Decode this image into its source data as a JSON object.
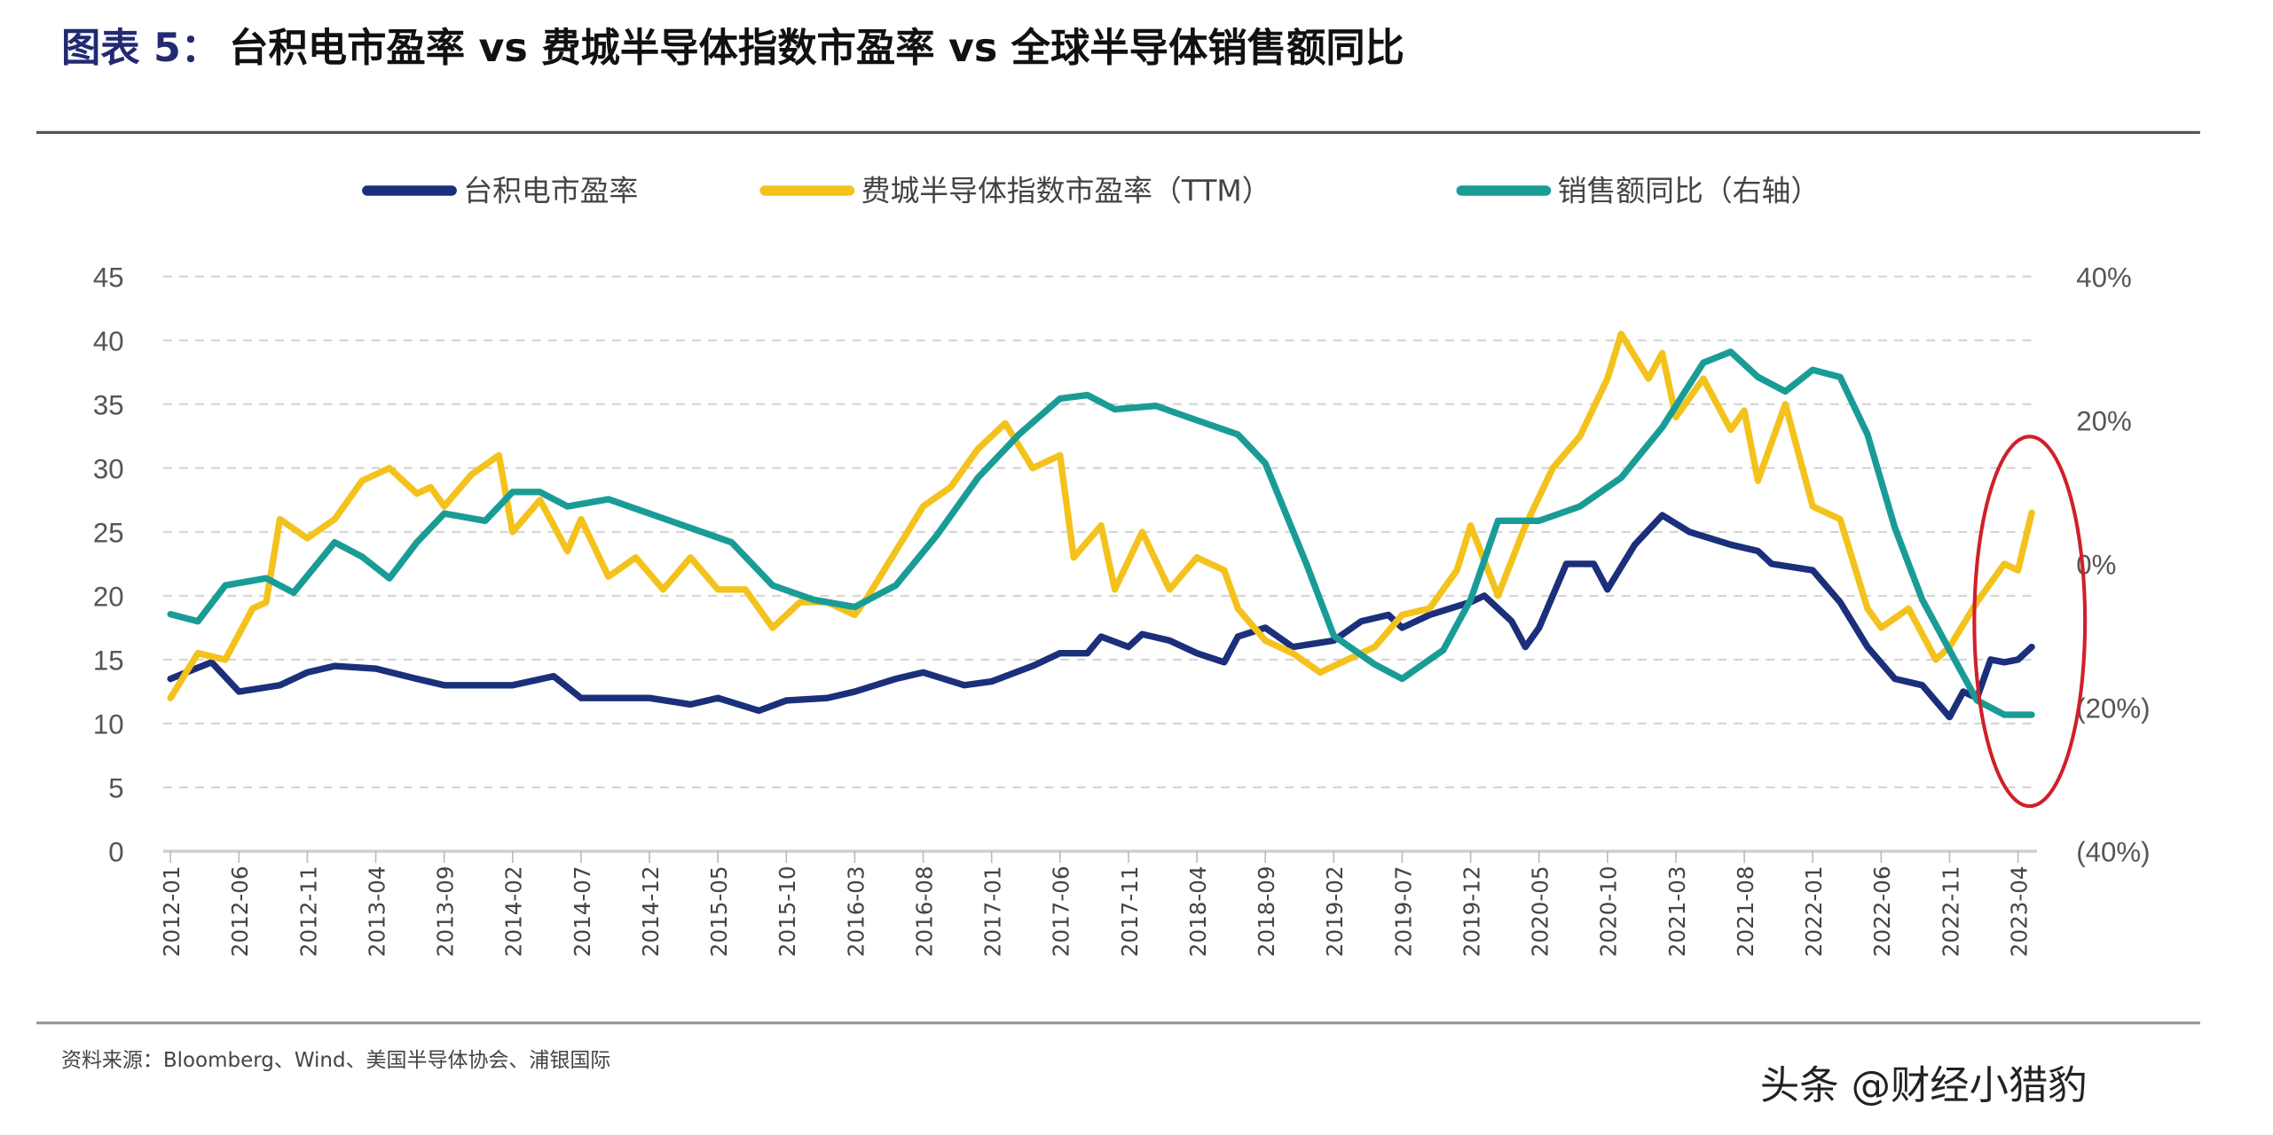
{
  "title": {
    "lead": "图表 5：",
    "main": "台积电市盈率 vs 费城半导体指数市盈率 vs 全球半导体销售额同比"
  },
  "source": "资料来源：Bloomberg、Wind、美国半导体协会、浦银国际",
  "watermark": "头条 @财经小猎豹",
  "colors": {
    "tsmc": "#1b2f7a",
    "sox": "#f4c21c",
    "sales": "#1a9c96",
    "highlight": "#d0202a",
    "title_lead": "#232a72"
  },
  "chart_data": {
    "type": "line",
    "title": "台积电市盈率 vs 费城半导体指数市盈率 vs 全球半导体销售额同比",
    "legend_position": "top",
    "grid": true,
    "x_range": [
      "2012-01",
      "2023-05"
    ],
    "x_ticks": [
      "2012-01",
      "2012-06",
      "2012-11",
      "2013-04",
      "2013-09",
      "2014-02",
      "2014-07",
      "2014-12",
      "2015-05",
      "2015-10",
      "2016-03",
      "2016-08",
      "2017-01",
      "2017-06",
      "2017-11",
      "2018-04",
      "2018-09",
      "2019-02",
      "2019-07",
      "2019-12",
      "2020-05",
      "2020-10",
      "2021-03",
      "2021-08",
      "2022-01",
      "2022-06",
      "2022-11",
      "2023-04"
    ],
    "y_left": {
      "ylim": [
        0,
        45
      ],
      "ticks": [
        "0",
        "5",
        "10",
        "15",
        "20",
        "25",
        "30",
        "35",
        "40",
        "45"
      ]
    },
    "y_right": {
      "ylim": [
        -40,
        40
      ],
      "ticks": [
        "(40%)",
        "(20%)",
        "0%",
        "20%",
        "40%"
      ],
      "tick_values": [
        -40,
        -20,
        0,
        20,
        40
      ]
    },
    "series": [
      {
        "name": "台积电市盈率",
        "axis": "left",
        "color": "#1b2f7a",
        "points": [
          [
            "2012-01",
            13.5
          ],
          [
            "2012-04",
            14.8
          ],
          [
            "2012-06",
            12.5
          ],
          [
            "2012-09",
            13
          ],
          [
            "2012-11",
            14
          ],
          [
            "2013-01",
            14.5
          ],
          [
            "2013-04",
            14.3
          ],
          [
            "2013-07",
            13.5
          ],
          [
            "2013-09",
            13
          ],
          [
            "2013-12",
            13
          ],
          [
            "2014-02",
            13
          ],
          [
            "2014-05",
            13.7
          ],
          [
            "2014-07",
            12
          ],
          [
            "2014-10",
            12
          ],
          [
            "2014-12",
            12
          ],
          [
            "2015-03",
            11.5
          ],
          [
            "2015-05",
            12
          ],
          [
            "2015-08",
            11
          ],
          [
            "2015-10",
            11.8
          ],
          [
            "2016-01",
            12
          ],
          [
            "2016-03",
            12.5
          ],
          [
            "2016-06",
            13.5
          ],
          [
            "2016-08",
            14
          ],
          [
            "2016-11",
            13
          ],
          [
            "2017-01",
            13.3
          ],
          [
            "2017-04",
            14.5
          ],
          [
            "2017-06",
            15.5
          ],
          [
            "2017-08",
            15.5
          ],
          [
            "2017-09",
            16.8
          ],
          [
            "2017-11",
            16
          ],
          [
            "2017-12",
            17
          ],
          [
            "2018-02",
            16.5
          ],
          [
            "2018-04",
            15.5
          ],
          [
            "2018-06",
            14.8
          ],
          [
            "2018-07",
            16.8
          ],
          [
            "2018-09",
            17.5
          ],
          [
            "2018-11",
            16
          ],
          [
            "2019-02",
            16.5
          ],
          [
            "2019-04",
            18
          ],
          [
            "2019-06",
            18.5
          ],
          [
            "2019-07",
            17.5
          ],
          [
            "2019-09",
            18.5
          ],
          [
            "2019-12",
            19.5
          ],
          [
            "2020-01",
            20
          ],
          [
            "2020-03",
            18
          ],
          [
            "2020-04",
            16
          ],
          [
            "2020-05",
            17.5
          ],
          [
            "2020-07",
            22.5
          ],
          [
            "2020-09",
            22.5
          ],
          [
            "2020-10",
            20.5
          ],
          [
            "2020-12",
            24
          ],
          [
            "2021-02",
            26.3
          ],
          [
            "2021-04",
            25
          ],
          [
            "2021-07",
            24
          ],
          [
            "2021-09",
            23.5
          ],
          [
            "2021-10",
            22.5
          ],
          [
            "2022-01",
            22
          ],
          [
            "2022-03",
            19.5
          ],
          [
            "2022-05",
            16
          ],
          [
            "2022-07",
            13.5
          ],
          [
            "2022-09",
            13
          ],
          [
            "2022-11",
            10.5
          ],
          [
            "2022-12",
            12.5
          ],
          [
            "2023-01",
            12
          ],
          [
            "2023-02",
            15
          ],
          [
            "2023-03",
            14.8
          ],
          [
            "2023-04",
            15
          ],
          [
            "2023-05",
            16
          ]
        ]
      },
      {
        "name": "费城半导体指数市盈率（TTM）",
        "axis": "left",
        "color": "#f4c21c",
        "points": [
          [
            "2012-01",
            12
          ],
          [
            "2012-03",
            15.5
          ],
          [
            "2012-05",
            15
          ],
          [
            "2012-07",
            19
          ],
          [
            "2012-08",
            19.5
          ],
          [
            "2012-09",
            26
          ],
          [
            "2012-11",
            24.5
          ],
          [
            "2013-01",
            26
          ],
          [
            "2013-03",
            29
          ],
          [
            "2013-05",
            30
          ],
          [
            "2013-07",
            28
          ],
          [
            "2013-08",
            28.5
          ],
          [
            "2013-09",
            27
          ],
          [
            "2013-11",
            29.5
          ],
          [
            "2014-01",
            31
          ],
          [
            "2014-02",
            25
          ],
          [
            "2014-04",
            27.5
          ],
          [
            "2014-06",
            23.5
          ],
          [
            "2014-07",
            26
          ],
          [
            "2014-09",
            21.5
          ],
          [
            "2014-11",
            23
          ],
          [
            "2015-01",
            20.5
          ],
          [
            "2015-03",
            23
          ],
          [
            "2015-05",
            20.5
          ],
          [
            "2015-07",
            20.5
          ],
          [
            "2015-09",
            17.5
          ],
          [
            "2015-11",
            19.5
          ],
          [
            "2016-01",
            19.5
          ],
          [
            "2016-03",
            18.5
          ],
          [
            "2016-04",
            20
          ],
          [
            "2016-06",
            23.5
          ],
          [
            "2016-08",
            27
          ],
          [
            "2016-10",
            28.5
          ],
          [
            "2016-12",
            31.5
          ],
          [
            "2017-02",
            33.5
          ],
          [
            "2017-04",
            30
          ],
          [
            "2017-06",
            31
          ],
          [
            "2017-07",
            23
          ],
          [
            "2017-09",
            25.5
          ],
          [
            "2017-10",
            20.5
          ],
          [
            "2017-12",
            25
          ],
          [
            "2018-02",
            20.5
          ],
          [
            "2018-04",
            23
          ],
          [
            "2018-06",
            22
          ],
          [
            "2018-07",
            19
          ],
          [
            "2018-09",
            16.5
          ],
          [
            "2018-11",
            15.5
          ],
          [
            "2019-01",
            14
          ],
          [
            "2019-03",
            15
          ],
          [
            "2019-05",
            16
          ],
          [
            "2019-07",
            18.5
          ],
          [
            "2019-09",
            19
          ],
          [
            "2019-11",
            22
          ],
          [
            "2019-12",
            25.5
          ],
          [
            "2020-02",
            20
          ],
          [
            "2020-04",
            25.5
          ],
          [
            "2020-06",
            30
          ],
          [
            "2020-08",
            32.5
          ],
          [
            "2020-10",
            37
          ],
          [
            "2020-11",
            40.5
          ],
          [
            "2021-01",
            37
          ],
          [
            "2021-02",
            39
          ],
          [
            "2021-03",
            34
          ],
          [
            "2021-05",
            37
          ],
          [
            "2021-07",
            33
          ],
          [
            "2021-08",
            34.5
          ],
          [
            "2021-09",
            29
          ],
          [
            "2021-11",
            35
          ],
          [
            "2022-01",
            27
          ],
          [
            "2022-03",
            26
          ],
          [
            "2022-05",
            19
          ],
          [
            "2022-06",
            17.5
          ],
          [
            "2022-08",
            19
          ],
          [
            "2022-10",
            15
          ],
          [
            "2022-11",
            16
          ],
          [
            "2023-01",
            19.5
          ],
          [
            "2023-03",
            22.5
          ],
          [
            "2023-04",
            22
          ],
          [
            "2023-05",
            26.5
          ]
        ]
      },
      {
        "name": "销售额同比（右轴）",
        "axis": "right",
        "color": "#1a9c96",
        "points": [
          [
            "2012-01",
            -7
          ],
          [
            "2012-03",
            -8
          ],
          [
            "2012-05",
            -3
          ],
          [
            "2012-08",
            -2
          ],
          [
            "2012-10",
            -4
          ],
          [
            "2013-01",
            3
          ],
          [
            "2013-03",
            1
          ],
          [
            "2013-05",
            -2
          ],
          [
            "2013-07",
            3
          ],
          [
            "2013-09",
            7
          ],
          [
            "2013-12",
            6
          ],
          [
            "2014-02",
            10
          ],
          [
            "2014-04",
            10
          ],
          [
            "2014-06",
            8
          ],
          [
            "2014-09",
            9
          ],
          [
            "2014-12",
            7
          ],
          [
            "2015-03",
            5
          ],
          [
            "2015-06",
            3
          ],
          [
            "2015-09",
            -3
          ],
          [
            "2015-12",
            -5
          ],
          [
            "2016-03",
            -6
          ],
          [
            "2016-06",
            -3
          ],
          [
            "2016-09",
            4
          ],
          [
            "2016-12",
            12
          ],
          [
            "2017-03",
            18
          ],
          [
            "2017-06",
            23
          ],
          [
            "2017-08",
            23.5
          ],
          [
            "2017-10",
            21.5
          ],
          [
            "2018-01",
            22
          ],
          [
            "2018-04",
            20
          ],
          [
            "2018-07",
            18
          ],
          [
            "2018-09",
            14
          ],
          [
            "2018-12",
            0
          ],
          [
            "2019-02",
            -10
          ],
          [
            "2019-05",
            -14
          ],
          [
            "2019-07",
            -16
          ],
          [
            "2019-10",
            -12
          ],
          [
            "2019-12",
            -5
          ],
          [
            "2020-02",
            6
          ],
          [
            "2020-05",
            6
          ],
          [
            "2020-08",
            8
          ],
          [
            "2020-11",
            12
          ],
          [
            "2021-02",
            19
          ],
          [
            "2021-05",
            28
          ],
          [
            "2021-07",
            29.5
          ],
          [
            "2021-09",
            26
          ],
          [
            "2021-11",
            24
          ],
          [
            "2022-01",
            27
          ],
          [
            "2022-03",
            26
          ],
          [
            "2022-05",
            18
          ],
          [
            "2022-07",
            5
          ],
          [
            "2022-09",
            -5
          ],
          [
            "2022-11",
            -12
          ],
          [
            "2023-01",
            -19
          ],
          [
            "2023-03",
            -21
          ],
          [
            "2023-05",
            -21
          ]
        ]
      }
    ]
  }
}
